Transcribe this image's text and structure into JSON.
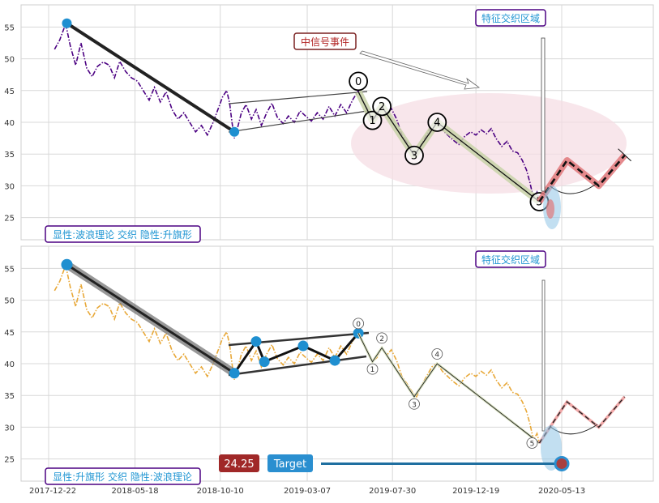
{
  "chart_data": [
    {
      "type": "line",
      "panel": "top",
      "ylim": [
        21.5,
        58.5
      ],
      "yticks": [
        25,
        30,
        35,
        40,
        45,
        50,
        55
      ],
      "price_color": "#4b0082",
      "price_style": "dash-dot",
      "grid": true,
      "price_points": [
        [
          "2018-01-01",
          51.5
        ],
        [
          "2018-01-10",
          53.0
        ],
        [
          "2018-01-20",
          55.5
        ],
        [
          "2018-01-28",
          52.0
        ],
        [
          "2018-02-06",
          49.0
        ],
        [
          "2018-02-15",
          52.5
        ],
        [
          "2018-02-25",
          48.5
        ],
        [
          "2018-03-06",
          47.2
        ],
        [
          "2018-03-15",
          48.8
        ],
        [
          "2018-03-25",
          49.5
        ],
        [
          "2018-04-04",
          49.0
        ],
        [
          "2018-04-13",
          47.0
        ],
        [
          "2018-04-22",
          49.6
        ],
        [
          "2018-05-02",
          48.0
        ],
        [
          "2018-05-12",
          47.0
        ],
        [
          "2018-05-22",
          46.5
        ],
        [
          "2018-06-01",
          45.0
        ],
        [
          "2018-06-11",
          43.5
        ],
        [
          "2018-06-20",
          45.5
        ],
        [
          "2018-06-30",
          43.2
        ],
        [
          "2018-07-10",
          44.8
        ],
        [
          "2018-07-20",
          42.0
        ],
        [
          "2018-07-30",
          40.5
        ],
        [
          "2018-08-09",
          41.5
        ],
        [
          "2018-08-19",
          40.0
        ],
        [
          "2018-08-29",
          38.5
        ],
        [
          "2018-09-08",
          39.5
        ],
        [
          "2018-09-18",
          38.0
        ],
        [
          "2018-09-28",
          40.0
        ],
        [
          "2018-10-06",
          42.0
        ],
        [
          "2018-10-14",
          44.0
        ],
        [
          "2018-10-21",
          45.0
        ],
        [
          "2018-10-26",
          43.0
        ],
        [
          "2018-10-30",
          40.0
        ],
        [
          "2018-11-03",
          37.5
        ],
        [
          "2018-11-08",
          39.0
        ],
        [
          "2018-11-15",
          41.5
        ],
        [
          "2018-11-23",
          42.8
        ],
        [
          "2018-12-02",
          40.5
        ],
        [
          "2018-12-10",
          42.0
        ],
        [
          "2018-12-19",
          39.5
        ],
        [
          "2018-12-28",
          41.5
        ],
        [
          "2019-01-06",
          43.0
        ],
        [
          "2019-01-15",
          40.8
        ],
        [
          "2019-01-25",
          39.8
        ],
        [
          "2019-02-03",
          41.0
        ],
        [
          "2019-02-13",
          40.0
        ],
        [
          "2019-02-23",
          41.8
        ],
        [
          "2019-03-04",
          41.0
        ],
        [
          "2019-03-14",
          40.2
        ],
        [
          "2019-03-24",
          41.5
        ],
        [
          "2019-04-03",
          40.5
        ],
        [
          "2019-04-13",
          42.5
        ],
        [
          "2019-04-23",
          41.0
        ],
        [
          "2019-05-03",
          42.8
        ],
        [
          "2019-05-13",
          41.5
        ],
        [
          "2019-05-23",
          43.5
        ],
        [
          "2019-06-02",
          45.0
        ],
        [
          "2019-06-10",
          43.2
        ],
        [
          "2019-06-18",
          42.0
        ],
        [
          "2019-06-26",
          40.3
        ],
        [
          "2019-07-04",
          41.0
        ],
        [
          "2019-07-12",
          42.5
        ],
        [
          "2019-07-20",
          41.3
        ],
        [
          "2019-07-28",
          42.2
        ],
        [
          "2019-08-06",
          40.5
        ],
        [
          "2019-08-15",
          38.0
        ],
        [
          "2019-08-24",
          36.8
        ],
        [
          "2019-09-02",
          35.5
        ],
        [
          "2019-09-09",
          34.8
        ],
        [
          "2019-09-17",
          36.5
        ],
        [
          "2019-09-26",
          38.0
        ],
        [
          "2019-10-05",
          39.5
        ],
        [
          "2019-10-14",
          40.0
        ],
        [
          "2019-10-23",
          38.8
        ],
        [
          "2019-11-01",
          38.0
        ],
        [
          "2019-11-10",
          37.2
        ],
        [
          "2019-11-20",
          36.5
        ],
        [
          "2019-11-30",
          37.8
        ],
        [
          "2019-12-10",
          38.5
        ],
        [
          "2019-12-19",
          38.0
        ],
        [
          "2019-12-28",
          38.8
        ],
        [
          "2020-01-06",
          38.2
        ],
        [
          "2020-01-14",
          39.0
        ],
        [
          "2020-01-22",
          37.5
        ],
        [
          "2020-02-01",
          36.2
        ],
        [
          "2020-02-10",
          37.0
        ],
        [
          "2020-02-19",
          35.5
        ],
        [
          "2020-02-28",
          35.2
        ],
        [
          "2020-03-07",
          34.0
        ],
        [
          "2020-03-14",
          32.5
        ],
        [
          "2020-03-20",
          30.5
        ],
        [
          "2020-03-26",
          28.0
        ],
        [
          "2020-04-01",
          29.0
        ],
        [
          "2020-04-05",
          27.5
        ]
      ],
      "badge": "显性:波浪理论 交织 隐性:升旗形",
      "overlap_label": "特征交织区域",
      "event_label": "中信号事件",
      "wave_labels": [
        "0",
        "1",
        "2",
        "3",
        "4",
        "5"
      ],
      "wave_points": [
        [
          "2019-06-02",
          44.8
        ],
        [
          "2019-06-26",
          40.3
        ],
        [
          "2019-07-12",
          42.5
        ],
        [
          "2019-09-05",
          34.8
        ],
        [
          "2019-10-14",
          40.0
        ],
        [
          "2020-04-05",
          27.5
        ]
      ],
      "projection_points": [
        [
          "2020-04-05",
          27.5
        ],
        [
          "2020-05-22",
          34.0
        ],
        [
          "2020-07-15",
          30.0
        ],
        [
          "2020-08-28",
          34.8
        ]
      ],
      "pole_points": [
        [
          "2018-01-22",
          55.6
        ],
        [
          "2018-11-03",
          38.5
        ]
      ],
      "colors": {
        "pole": "#222222",
        "marker": "#1f8fd0",
        "wave_fill": "#c8d2a8",
        "overlap": "#f6dde4",
        "projection": "#e0777a",
        "event_box": "#b22222",
        "badge_text": "#2196d3",
        "badge_border": "#4b0082"
      }
    },
    {
      "type": "line",
      "panel": "bottom",
      "ylim": [
        21.5,
        58.5
      ],
      "yticks": [
        25,
        30,
        35,
        40,
        45,
        50,
        55
      ],
      "price_color": "#e8a838",
      "price_style": "dash-dot",
      "grid": true,
      "xticks": [
        "2017-12-22",
        "2018-05-18",
        "2018-10-10",
        "2019-03-07",
        "2019-07-30",
        "2019-12-19",
        "2020-05-13"
      ],
      "badge": "显性:升旗形 交织 隐性:波浪理论",
      "overlap_label": "特征交织区域",
      "wave_labels": [
        "0",
        "1",
        "2",
        "3",
        "4",
        "5"
      ],
      "flag_points": [
        [
          "2018-11-03",
          38.5
        ],
        [
          "2018-12-10",
          43.5
        ],
        [
          "2018-12-24",
          40.3
        ],
        [
          "2019-02-28",
          42.8
        ],
        [
          "2019-04-23",
          40.5
        ],
        [
          "2019-06-02",
          44.8
        ]
      ],
      "pole_points": [
        [
          "2018-01-22",
          55.6
        ],
        [
          "2018-11-03",
          38.5
        ]
      ],
      "target": {
        "label": "Target",
        "value": "24.25",
        "date": "2020-05-13",
        "price": 24.25
      },
      "colors": {
        "pole": "#222222",
        "marker": "#1f8fd0",
        "price_box": "#a02828",
        "target_box": "#2a8fd0",
        "target_arrow": "#1f6fa0"
      }
    }
  ]
}
